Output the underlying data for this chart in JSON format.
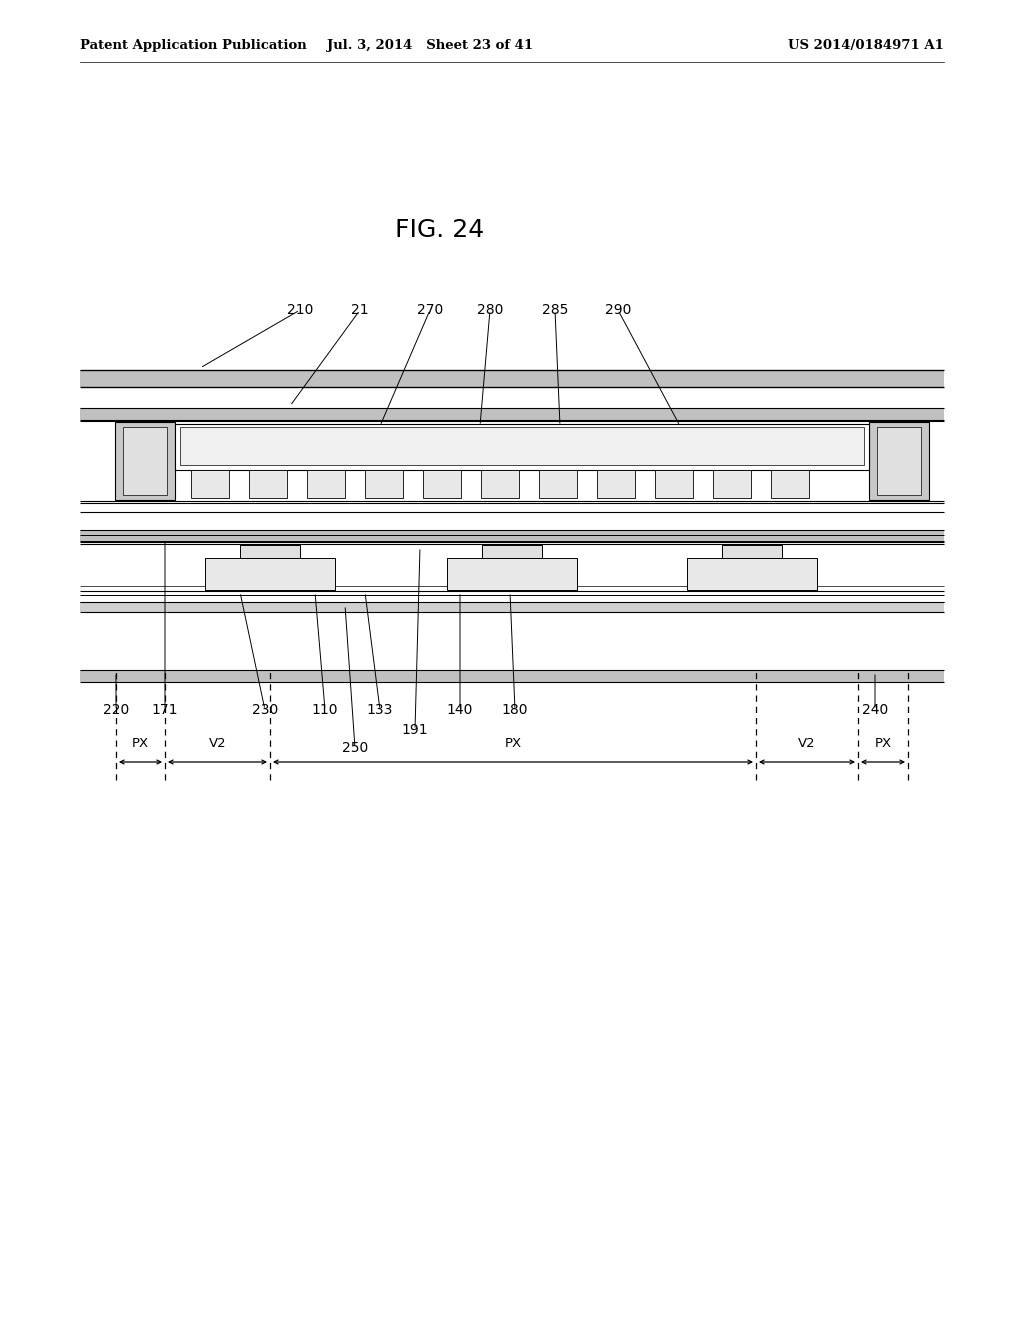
{
  "bg_color": "#ffffff",
  "fig_label": "FIG. 24",
  "header_left": "Patent Application Publication",
  "header_mid": "Jul. 3, 2014   Sheet 23 of 41",
  "header_right": "US 2014/0184971 A1",
  "line_color": "#000000",
  "gray_fill": "#b0b0b0",
  "white_fill": "#ffffff",
  "light_gray": "#d8d8d8"
}
